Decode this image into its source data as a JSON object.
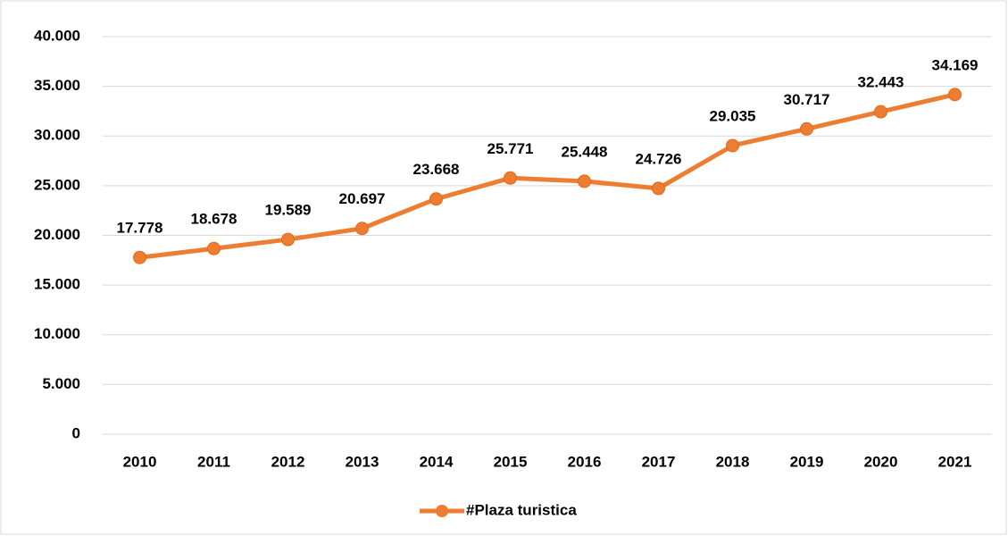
{
  "chart_data": {
    "type": "line",
    "categories": [
      "2010",
      "2011",
      "2012",
      "2013",
      "2014",
      "2015",
      "2016",
      "2017",
      "2018",
      "2019",
      "2020",
      "2021"
    ],
    "series": [
      {
        "name": "#Plaza turistica",
        "color": "#ed7d31",
        "values": [
          17778,
          18678,
          19589,
          20697,
          23668,
          25771,
          25448,
          24726,
          29035,
          30717,
          32443,
          34169
        ],
        "value_labels": [
          "17.778",
          "18.678",
          "19.589",
          "20.697",
          "23.668",
          "25.771",
          "25.448",
          "24.726",
          "29.035",
          "30.717",
          "32.443",
          "34.169"
        ]
      }
    ],
    "ylim": [
      0,
      40000
    ],
    "yticks": [
      0,
      {
        "value": 5000,
        "label": "5.000"
      },
      {
        "value": 10000,
        "label": "10.000"
      },
      {
        "value": 15000,
        "label": "15.000"
      },
      {
        "value": 20000,
        "label": "20.000"
      },
      {
        "value": 25000,
        "label": "25.000"
      },
      {
        "value": 30000,
        "label": "30.000"
      },
      {
        "value": 35000,
        "label": "35.000"
      },
      {
        "value": 40000,
        "label": "40.000"
      }
    ],
    "grid": true,
    "legend": "bottom"
  }
}
